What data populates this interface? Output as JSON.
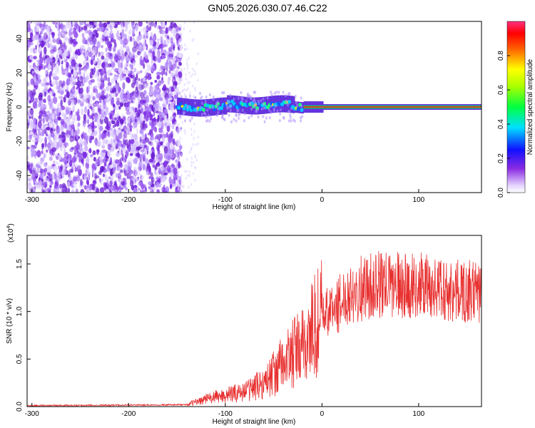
{
  "title": "GN05.2026.030.07.46.C22",
  "chart_data": [
    {
      "type": "heatmap",
      "xlabel": "Height of straight line (km)",
      "ylabel": "Frequency (Hz)",
      "xlim": [
        -305,
        165
      ],
      "ylim": [
        -50,
        50
      ],
      "xticks": [
        -300,
        -200,
        -100,
        0,
        100
      ],
      "yticks": [
        -40,
        -20,
        0,
        20,
        40
      ],
      "noise_region_x": [
        -305,
        -150
      ],
      "signal_onset_x": -150,
      "tone_frequency": 0,
      "colorbar": {
        "label": "Normalized spectral amplitude",
        "range": [
          0.0,
          1.0
        ],
        "ticks": [
          "0.0",
          "0.2",
          "0.4",
          "0.6",
          "0.8"
        ]
      }
    },
    {
      "type": "line",
      "xlabel": "Height of straight line (km)",
      "ylabel": "SNR (10 * v/v)",
      "y_multiplier_label": "(x10",
      "y_multiplier_exp": "4",
      "y_multiplier_close": ")",
      "xlim": [
        -305,
        165
      ],
      "ylim": [
        0,
        1.8
      ],
      "xticks": [
        -300,
        -200,
        -100,
        0,
        100
      ],
      "yticks": [
        "0.0",
        "0.5",
        "1.0",
        "1.5"
      ],
      "series": [
        {
          "color": "#e83030",
          "envelope": [
            {
              "x": -305,
              "y": 0.01
            },
            {
              "x": -140,
              "y": 0.02
            },
            {
              "x": -120,
              "y": 0.08
            },
            {
              "x": -100,
              "y": 0.12
            },
            {
              "x": -80,
              "y": 0.16
            },
            {
              "x": -60,
              "y": 0.25
            },
            {
              "x": -45,
              "y": 0.4
            },
            {
              "x": -30,
              "y": 0.55
            },
            {
              "x": -20,
              "y": 0.62
            },
            {
              "x": -10,
              "y": 0.8
            },
            {
              "x": 0,
              "y": 0.95
            },
            {
              "x": 15,
              "y": 1.05
            },
            {
              "x": 30,
              "y": 1.22
            },
            {
              "x": 60,
              "y": 1.28
            },
            {
              "x": 100,
              "y": 1.27
            },
            {
              "x": 130,
              "y": 1.22
            },
            {
              "x": 165,
              "y": 1.2
            }
          ]
        }
      ]
    }
  ]
}
